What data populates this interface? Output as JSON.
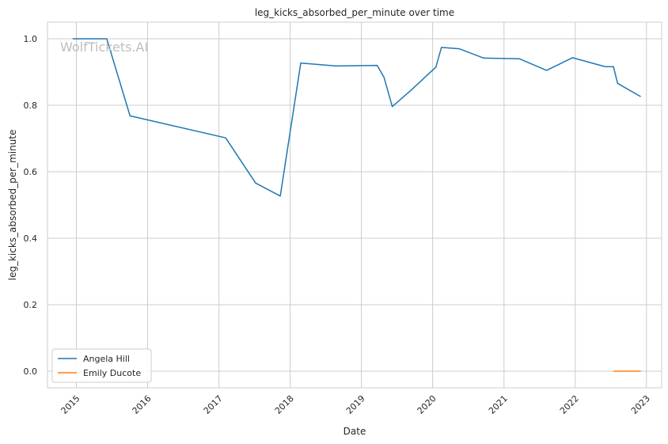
{
  "chart_data": {
    "type": "line",
    "title": "leg_kicks_absorbed_per_minute over time",
    "xlabel": "Date",
    "ylabel": "leg_kicks_absorbed_per_minute",
    "watermark": "WolfTickets.AI",
    "x_ticks": [
      "2015",
      "2016",
      "2017",
      "2018",
      "2019",
      "2020",
      "2021",
      "2022",
      "2023"
    ],
    "y_ticks": [
      "0.0",
      "0.2",
      "0.4",
      "0.6",
      "0.8",
      "1.0"
    ],
    "xlim": [
      "2014-08-06",
      "2023-03-20"
    ],
    "ylim": [
      -0.05,
      1.05
    ],
    "grid": true,
    "legend_position": "lower-left",
    "series": [
      {
        "name": "Angela Hill",
        "color": "#1f77b4",
        "points": [
          [
            "2014-12-13",
            1.0
          ],
          [
            "2015-06-06",
            1.0
          ],
          [
            "2015-10-03",
            0.768
          ],
          [
            "2017-02-04",
            0.702
          ],
          [
            "2017-07-08",
            0.566
          ],
          [
            "2017-11-11",
            0.527
          ],
          [
            "2018-02-24",
            0.927
          ],
          [
            "2018-08-25",
            0.918
          ],
          [
            "2019-03-23",
            0.92
          ],
          [
            "2019-04-27",
            0.884
          ],
          [
            "2019-06-08",
            0.796
          ],
          [
            "2019-09-14",
            0.846
          ],
          [
            "2020-01-18",
            0.915
          ],
          [
            "2020-02-15",
            0.974
          ],
          [
            "2020-05-16",
            0.97
          ],
          [
            "2020-09-19",
            0.942
          ],
          [
            "2021-03-20",
            0.94
          ],
          [
            "2021-08-07",
            0.905
          ],
          [
            "2021-12-18",
            0.943
          ],
          [
            "2022-06-04",
            0.916
          ],
          [
            "2022-07-16",
            0.916
          ],
          [
            "2022-08-06",
            0.866
          ],
          [
            "2022-12-03",
            0.826
          ]
        ]
      },
      {
        "name": "Emily Ducote",
        "color": "#ff7f0e",
        "points": [
          [
            "2022-07-16",
            0.0
          ],
          [
            "2022-12-03",
            0.0
          ]
        ]
      }
    ]
  }
}
